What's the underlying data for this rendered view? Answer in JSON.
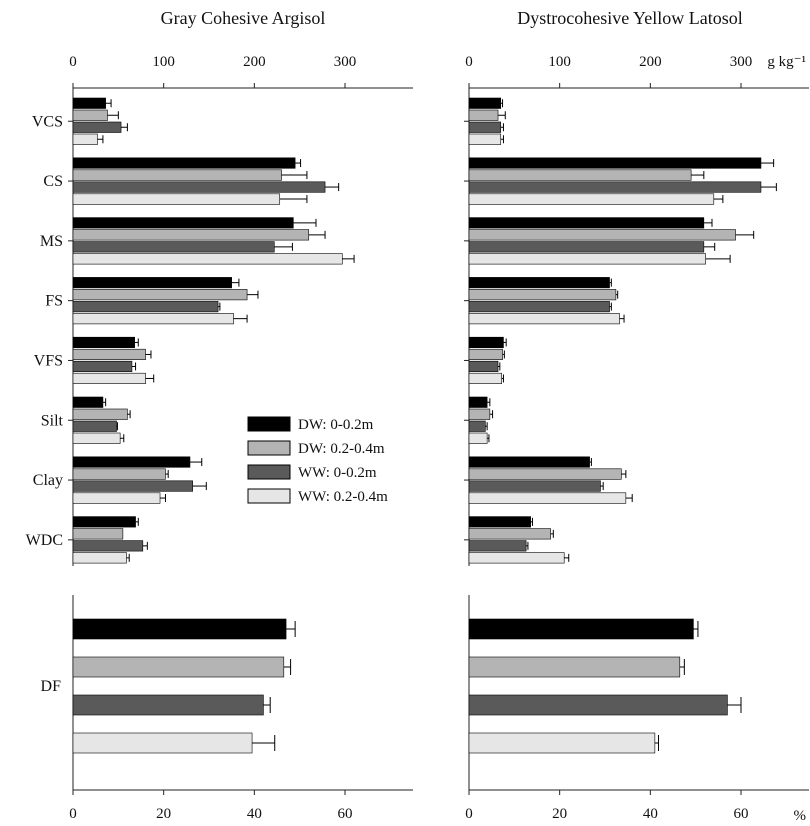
{
  "chart_data": [
    {
      "type": "bar",
      "orientation": "horizontal",
      "title": "Gray Cohesive Argisol",
      "panel": "texture",
      "unit": "",
      "xlim": [
        0,
        375
      ],
      "xticks": [
        0,
        100,
        200,
        300
      ],
      "categories": [
        "VCS",
        "CS",
        "MS",
        "FS",
        "VFS",
        "Silt",
        "Clay",
        "WDC"
      ],
      "series": [
        {
          "name": "DW: 0-0.2m",
          "color": "#000000",
          "values": [
            36,
            245,
            243,
            175,
            68,
            33,
            129,
            69
          ],
          "errors": [
            6,
            6,
            25,
            8,
            4,
            3,
            13,
            3
          ]
        },
        {
          "name": "DW: 0.2-0.4m",
          "color": "#b4b4b4",
          "values": [
            38,
            230,
            260,
            192,
            80,
            60,
            102,
            55
          ],
          "errors": [
            12,
            28,
            18,
            12,
            6,
            3,
            3,
            0
          ]
        },
        {
          "name": "WW: 0-0.2m",
          "color": "#5a5a5a",
          "values": [
            53,
            278,
            222,
            160,
            65,
            48,
            132,
            77
          ],
          "errors": [
            7,
            15,
            20,
            2,
            4,
            1,
            15,
            5
          ]
        },
        {
          "name": "WW: 0.2-0.4m",
          "color": "#e6e6e6",
          "values": [
            27,
            228,
            297,
            177,
            80,
            52,
            96,
            59
          ],
          "errors": [
            6,
            30,
            13,
            15,
            9,
            4,
            6,
            3
          ]
        }
      ]
    },
    {
      "type": "bar",
      "orientation": "horizontal",
      "title": "Dystrocohesive Yellow Latosol",
      "panel": "texture",
      "unit": "g kg⁻¹",
      "xlim": [
        0,
        375
      ],
      "xticks": [
        0,
        100,
        200,
        300
      ],
      "categories": [
        "VCS",
        "CS",
        "MS",
        "FS",
        "VFS",
        "Silt",
        "Clay",
        "WDC"
      ],
      "series": [
        {
          "name": "DW: 0-0.2m",
          "color": "#000000",
          "values": [
            35,
            322,
            259,
            155,
            38,
            20,
            133,
            68
          ],
          "errors": [
            2,
            14,
            9,
            2,
            3,
            3,
            2,
            2
          ]
        },
        {
          "name": "DW: 0.2-0.4m",
          "color": "#b4b4b4",
          "values": [
            32,
            245,
            294,
            162,
            37,
            23,
            168,
            90
          ],
          "errors": [
            8,
            14,
            20,
            2,
            2,
            3,
            5,
            3
          ]
        },
        {
          "name": "WW: 0-0.2m",
          "color": "#5a5a5a",
          "values": [
            35,
            322,
            259,
            155,
            32,
            18,
            145,
            63
          ],
          "errors": [
            3,
            17,
            12,
            2,
            2,
            2,
            3,
            2
          ]
        },
        {
          "name": "WW: 0.2-0.4m",
          "color": "#e6e6e6",
          "values": [
            35,
            270,
            261,
            166,
            36,
            20,
            173,
            105
          ],
          "errors": [
            3,
            10,
            27,
            5,
            2,
            2,
            7,
            5
          ]
        }
      ]
    },
    {
      "type": "bar",
      "orientation": "horizontal",
      "title": "",
      "panel": "DF",
      "unit": "",
      "xlim": [
        0,
        75
      ],
      "xticks": [
        0,
        20,
        40,
        60
      ],
      "categories": [
        "DF"
      ],
      "series": [
        {
          "name": "DW: 0-0.2m",
          "color": "#000000",
          "values": [
            47
          ],
          "errors": [
            2
          ]
        },
        {
          "name": "DW: 0.2-0.4m",
          "color": "#b4b4b4",
          "values": [
            46.5
          ],
          "errors": [
            1.5
          ]
        },
        {
          "name": "WW: 0-0.2m",
          "color": "#5a5a5a",
          "values": [
            42
          ],
          "errors": [
            1.5
          ]
        },
        {
          "name": "WW: 0.2-0.4m",
          "color": "#e6e6e6",
          "values": [
            39.5
          ],
          "errors": [
            5
          ]
        }
      ]
    },
    {
      "type": "bar",
      "orientation": "horizontal",
      "title": "",
      "panel": "DF",
      "unit": "%",
      "xlim": [
        0,
        75
      ],
      "xticks": [
        0,
        20,
        40,
        60
      ],
      "categories": [
        "DF"
      ],
      "series": [
        {
          "name": "DW: 0-0.2m",
          "color": "#000000",
          "values": [
            49.5
          ],
          "errors": [
            1
          ]
        },
        {
          "name": "DW: 0.2-0.4m",
          "color": "#b4b4b4",
          "values": [
            46.5
          ],
          "errors": [
            1
          ]
        },
        {
          "name": "WW: 0-0.2m",
          "color": "#5a5a5a",
          "values": [
            57
          ],
          "errors": [
            3
          ]
        },
        {
          "name": "WW: 0.2-0.4m",
          "color": "#e6e6e6",
          "values": [
            41
          ],
          "errors": [
            0.8
          ]
        }
      ]
    }
  ],
  "legend": {
    "placement": "center",
    "entries": [
      "DW: 0-0.2m",
      "DW: 0.2-0.4m",
      "WW: 0-0.2m",
      "WW: 0.2-0.4m"
    ]
  }
}
